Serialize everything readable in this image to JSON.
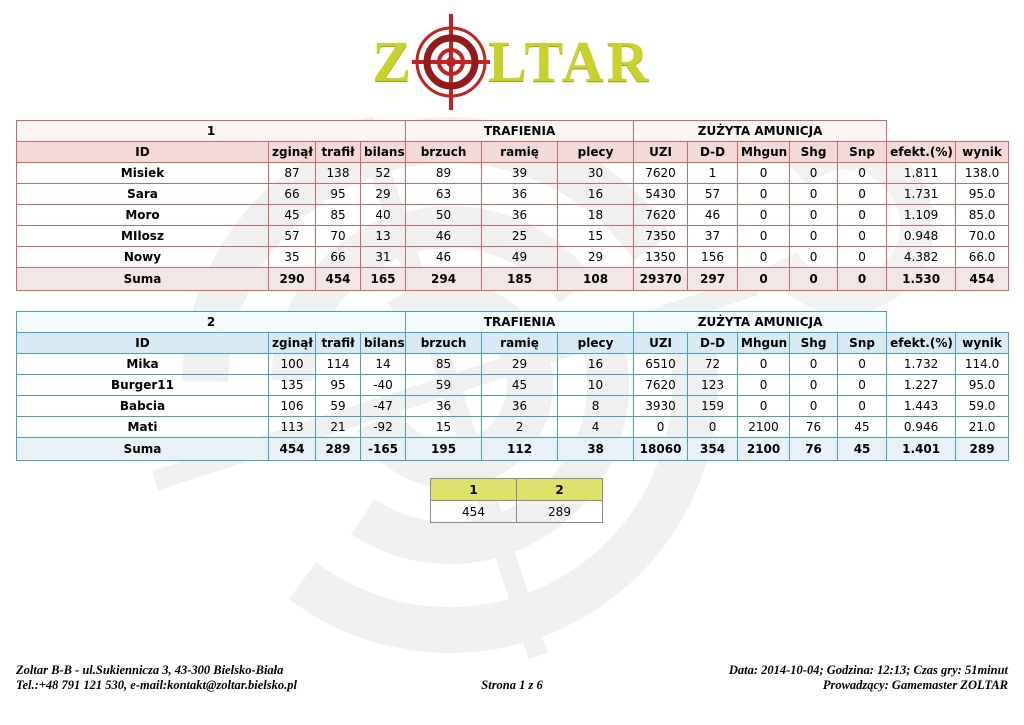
{
  "logo": {
    "left": "Z",
    "right": "LTAR"
  },
  "colors": {
    "team1_accent": "#c96a6a",
    "team1_header_bg": "#f5d9d9",
    "team1_group_bg": "#fdf4f4",
    "team1_total_bg": "#f1e7e7",
    "team2_accent": "#4d9fb8",
    "team2_header_bg": "#d8ebf4",
    "team2_group_bg": "#f2fafc",
    "team2_total_bg": "#e8f2f6",
    "logo_yellow": "#c9d22b",
    "logo_red": "#c32222",
    "summary_header_bg": "#dde26a"
  },
  "tables": [
    {
      "team_label": "1",
      "group_headers": [
        "1",
        "TRAFIENIA",
        "ZUŻYTA AMUNICJA"
      ],
      "columns": [
        "ID",
        "zginął",
        "trafił",
        "bilans",
        "brzuch",
        "ramię",
        "plecy",
        "UZI",
        "D-D",
        "Mhgun",
        "Shg",
        "Snp",
        "efekt.(%)",
        "wynik"
      ],
      "rows": [
        [
          "Misiek",
          "87",
          "138",
          "52",
          "89",
          "39",
          "30",
          "7620",
          "1",
          "0",
          "0",
          "0",
          "1.811",
          "138.0"
        ],
        [
          "Sara",
          "66",
          "95",
          "29",
          "63",
          "36",
          "16",
          "5430",
          "57",
          "0",
          "0",
          "0",
          "1.731",
          "95.0"
        ],
        [
          "Moro",
          "45",
          "85",
          "40",
          "50",
          "36",
          "18",
          "7620",
          "46",
          "0",
          "0",
          "0",
          "1.109",
          "85.0"
        ],
        [
          "MIlosz",
          "57",
          "70",
          "13",
          "46",
          "25",
          "15",
          "7350",
          "37",
          "0",
          "0",
          "0",
          "0.948",
          "70.0"
        ],
        [
          "Nowy",
          "35",
          "66",
          "31",
          "46",
          "49",
          "29",
          "1350",
          "156",
          "0",
          "0",
          "0",
          "4.382",
          "66.0"
        ]
      ],
      "total": [
        "Suma",
        "290",
        "454",
        "165",
        "294",
        "185",
        "108",
        "29370",
        "297",
        "0",
        "0",
        "0",
        "1.530",
        "454"
      ]
    },
    {
      "team_label": "2",
      "group_headers": [
        "2",
        "TRAFIENIA",
        "ZUŻYTA AMUNICJA"
      ],
      "columns": [
        "ID",
        "zginął",
        "trafił",
        "bilans",
        "brzuch",
        "ramię",
        "plecy",
        "UZI",
        "D-D",
        "Mhgun",
        "Shg",
        "Snp",
        "efekt.(%)",
        "wynik"
      ],
      "rows": [
        [
          "Mika",
          "100",
          "114",
          "14",
          "85",
          "29",
          "16",
          "6510",
          "72",
          "0",
          "0",
          "0",
          "1.732",
          "114.0"
        ],
        [
          "Burger11",
          "135",
          "95",
          "-40",
          "59",
          "45",
          "10",
          "7620",
          "123",
          "0",
          "0",
          "0",
          "1.227",
          "95.0"
        ],
        [
          "Babcia",
          "106",
          "59",
          "-47",
          "36",
          "36",
          "8",
          "3930",
          "159",
          "0",
          "0",
          "0",
          "1.443",
          "59.0"
        ],
        [
          "Mati",
          "113",
          "21",
          "-92",
          "15",
          "2",
          "4",
          "0",
          "0",
          "2100",
          "76",
          "45",
          "0.946",
          "21.0"
        ]
      ],
      "total": [
        "Suma",
        "454",
        "289",
        "-165",
        "195",
        "112",
        "38",
        "18060",
        "354",
        "2100",
        "76",
        "45",
        "1.401",
        "289"
      ]
    }
  ],
  "summary_table": {
    "headers": [
      "1",
      "2"
    ],
    "values": [
      "454",
      "289"
    ]
  },
  "footer": {
    "left_line1": "Zoltar B-B - ul.Sukiennicza 3, 43-300 Bielsko-Biała",
    "left_line2": "Tel.:+48 791 121 530, e-mail:kontakt@zoltar.bielsko.pl",
    "center": "Strona 1 z 6",
    "right_line1": "Data: 2014-10-04; Godzina: 12:13; Czas gry: 51minut",
    "right_line2": "Prowadzący: Gamemaster ZOLTAR"
  }
}
